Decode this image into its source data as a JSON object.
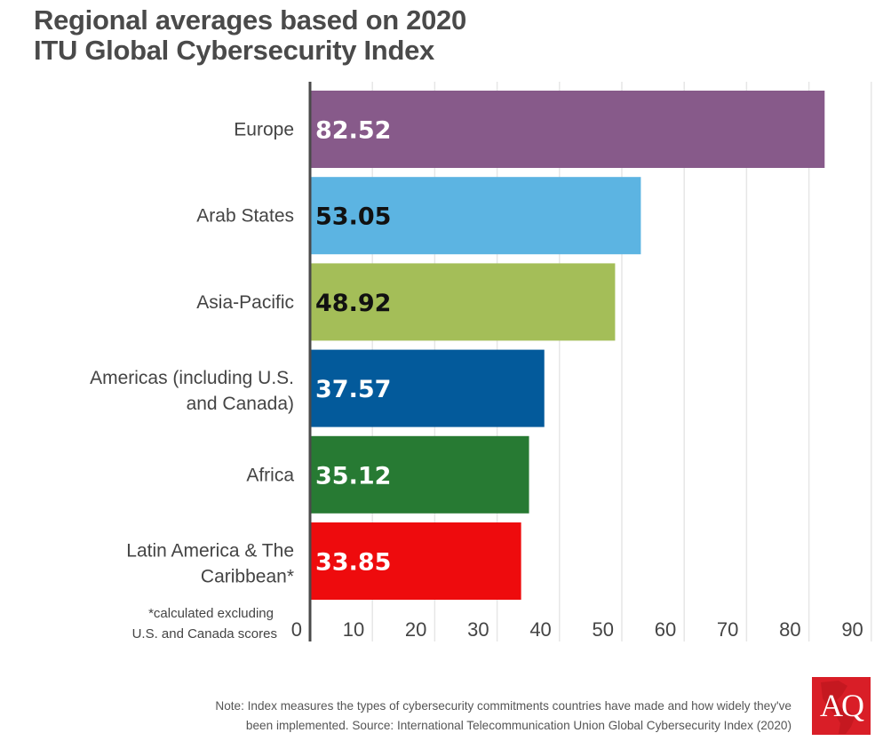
{
  "title": {
    "line1": "Regional averages based on 2020",
    "line2": "ITU Global Cybersecurity Index"
  },
  "chart_data": {
    "type": "bar",
    "orientation": "horizontal",
    "title": "Regional averages based on 2020 ITU Global Cybersecurity Index",
    "xlabel": "",
    "ylabel": "",
    "xlim": [
      0,
      90
    ],
    "grid": true,
    "xticks": [
      0,
      10,
      20,
      30,
      40,
      50,
      60,
      70,
      80,
      90
    ],
    "xtick_labels": [
      "0",
      "10",
      "20",
      "30",
      "40",
      "50",
      "60",
      "70",
      "80",
      "90"
    ],
    "categories": [
      {
        "line1": "Europe",
        "line2": ""
      },
      {
        "line1": "Arab States",
        "line2": ""
      },
      {
        "line1": "Asia-Pacific",
        "line2": ""
      },
      {
        "line1": "Americas (including U.S.",
        "line2": "and Canada)"
      },
      {
        "line1": "Africa",
        "line2": ""
      },
      {
        "line1": "Latin America & The",
        "line2": "Caribbean*"
      }
    ],
    "values": [
      82.52,
      53.05,
      48.92,
      37.57,
      35.12,
      33.85
    ],
    "data_labels": [
      "82.52",
      "53.05",
      "48.92",
      "37.57",
      "35.12",
      "33.85"
    ],
    "bar_colors": [
      "#875a8a",
      "#5cb4e2",
      "#a4be58",
      "#035a9b",
      "#277a33",
      "#ee0b0d"
    ],
    "label_colors": [
      "#ffffff",
      "#111111",
      "#111111",
      "#ffffff",
      "#ffffff",
      "#ffffff"
    ],
    "footnote": {
      "line1": "*calculated excluding",
      "line2": "U.S. and Canada scores"
    }
  },
  "note": {
    "line1": "Note: Index measures the types of cybersecurity commitments countries have made and how widely they've",
    "line2": "been implemented. Source: International Telecommunication Union Global Cybersecurity Index (2020)"
  },
  "logo": {
    "text": "AQ",
    "color": "#d91e27"
  }
}
